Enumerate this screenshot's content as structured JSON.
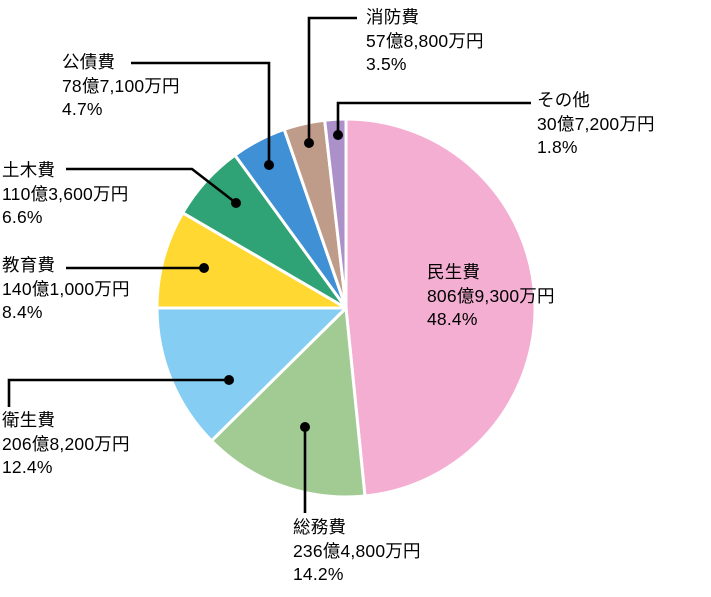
{
  "chart_data": {
    "type": "pie",
    "title": "",
    "direction": "clockwise",
    "start_angle_deg": 0,
    "legend_position": "none",
    "labels_layout": "callout-with-leader-lines",
    "units": "円 (Japanese yen)",
    "slices": [
      {
        "label": "民生費",
        "amount": "806億9,300万円",
        "percent": "48.4%",
        "value": 48.4,
        "color": "#F3AED2"
      },
      {
        "label": "総務費",
        "amount": "236億4,800万円",
        "percent": "14.2%",
        "value": 14.2,
        "color": "#A2CB94"
      },
      {
        "label": "衛生費",
        "amount": "206億8,200万円",
        "percent": "12.4%",
        "value": 12.4,
        "color": "#85CDF2"
      },
      {
        "label": "教育費",
        "amount": "140億1,000万円",
        "percent": "8.4%",
        "value": 8.4,
        "color": "#FFD832"
      },
      {
        "label": "土木費",
        "amount": "110億3,600万円",
        "percent": "6.6%",
        "value": 6.6,
        "color": "#2FA376"
      },
      {
        "label": "公債費",
        "amount": "78億7,100万円",
        "percent": "4.7%",
        "value": 4.7,
        "color": "#4090D6"
      },
      {
        "label": "消防費",
        "amount": "57億8,800万円",
        "percent": "3.5%",
        "value": 3.5,
        "color": "#BF9C89"
      },
      {
        "label": "その他",
        "amount": "30億7,200万円",
        "percent": "1.8%",
        "value": 1.8,
        "color": "#AC90C9"
      }
    ],
    "leader_line_color": "#000000",
    "slice_border_color": "#ffffff"
  }
}
